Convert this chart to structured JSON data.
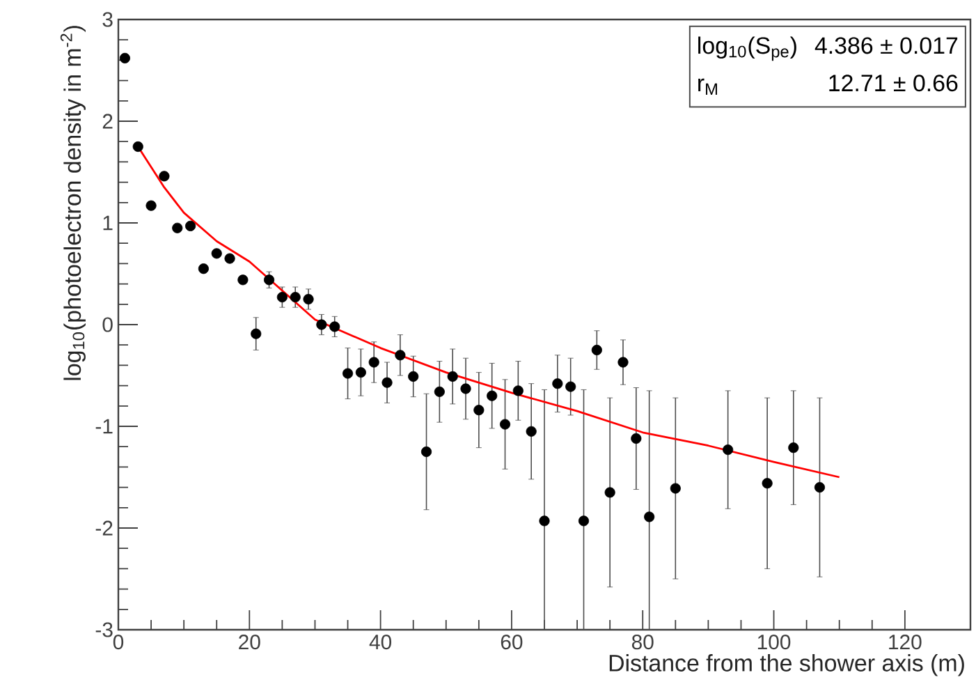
{
  "chart_data": {
    "type": "scatter",
    "xlabel": "Distance from the shower axis (m)",
    "ylabel": "log$_{10}$(photoelectron density in m$^{-2}$)",
    "xlim": [
      0,
      130
    ],
    "ylim": [
      -3,
      3
    ],
    "xticks": [
      0,
      20,
      40,
      60,
      80,
      100,
      120
    ],
    "yticks": [
      -3,
      -2,
      -1,
      0,
      1,
      2,
      3
    ],
    "grid": false,
    "annotations": [
      "log$_{10}$(S$_{pe}$)",
      "4.386 ± 0.017",
      "r$_{M}$",
      "12.71 ± 0.66"
    ],
    "series": [
      {
        "color": "#000000",
        "marker": "circle",
        "x": [
          1,
          3,
          5,
          7,
          9,
          11,
          13,
          15,
          17,
          19,
          21,
          23,
          25,
          27,
          29,
          31,
          33,
          35,
          37,
          39,
          41,
          43,
          45,
          47,
          49,
          51,
          53,
          55,
          57,
          59,
          61,
          63,
          65,
          67,
          69,
          71,
          73,
          75,
          77,
          79,
          81,
          85,
          93,
          99,
          103,
          107
        ],
        "values": [
          2.62,
          1.75,
          1.17,
          1.46,
          0.95,
          0.97,
          0.55,
          0.7,
          0.65,
          0.44,
          -0.09,
          0.44,
          0.27,
          0.27,
          0.25,
          0.0,
          -0.02,
          -0.48,
          -0.47,
          -0.37,
          -0.57,
          -0.3,
          -0.51,
          -1.25,
          -0.66,
          -0.51,
          -0.63,
          -0.84,
          -0.7,
          -0.98,
          -0.65,
          -1.05,
          -1.93,
          -0.58,
          -0.61,
          -1.93,
          -0.25,
          -1.65,
          -0.37,
          -1.12,
          -1.89,
          -1.61,
          -1.23,
          -1.56,
          -1.21,
          -1.6
        ],
        "errors": [
          null,
          null,
          null,
          null,
          null,
          null,
          null,
          null,
          null,
          null,
          0.16,
          0.08,
          0.1,
          0.1,
          0.1,
          0.1,
          0.1,
          0.25,
          0.23,
          0.2,
          0.2,
          0.2,
          0.2,
          0.57,
          0.3,
          0.27,
          0.3,
          0.37,
          0.32,
          0.44,
          0.29,
          0.47,
          [
            -3,
            -0.64
          ],
          0.28,
          0.28,
          [
            -3,
            -0.64
          ],
          0.19,
          0.93,
          0.22,
          0.5,
          [
            -3,
            -0.65
          ],
          0.89,
          0.58,
          0.84,
          0.56,
          0.88
        ]
      },
      {
        "type": "line",
        "color": "#ff0000",
        "marker": "none",
        "x": [
          3,
          5,
          7,
          10,
          15,
          20,
          30,
          40,
          50,
          60,
          70,
          80,
          90,
          100,
          110
        ],
        "values": [
          1.75,
          1.55,
          1.35,
          1.1,
          0.82,
          0.62,
          0.05,
          -0.23,
          -0.47,
          -0.67,
          -0.85,
          -1.06,
          -1.19,
          -1.35,
          -1.5
        ]
      }
    ]
  }
}
